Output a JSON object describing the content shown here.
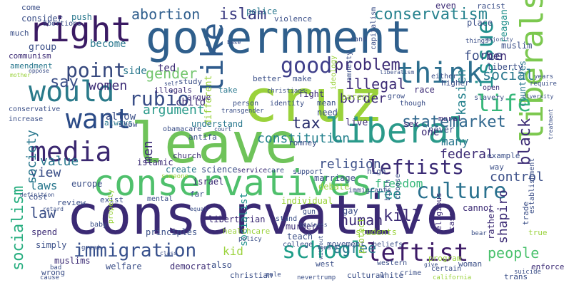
{
  "words": [
    {
      "text": "conservative",
      "color": "#3b2a74"
    },
    {
      "text": "leave",
      "color": "#6fc35a"
    },
    {
      "text": "government",
      "color": "#2f5f8c"
    },
    {
      "text": "cruz",
      "color": "#9ad23b"
    },
    {
      "text": "conservatives",
      "color": "#4fc06c"
    },
    {
      "text": "liberal",
      "color": "#2a9a8a"
    },
    {
      "text": "liberals",
      "color": "#7cc84f"
    },
    {
      "text": "right",
      "color": "#3a1a63"
    },
    {
      "text": "would",
      "color": "#2a7a8a"
    },
    {
      "text": "want",
      "color": "#2a4a86"
    },
    {
      "text": "media",
      "color": "#3b2870"
    },
    {
      "text": "like",
      "color": "#2f5b8c"
    },
    {
      "text": "think",
      "color": "#2c6e8e"
    },
    {
      "text": "issue",
      "color": "#21908d"
    },
    {
      "text": "good",
      "color": "#3f3f8a"
    },
    {
      "text": "point",
      "color": "#35477d"
    },
    {
      "text": "rubio",
      "color": "#3a4e87"
    },
    {
      "text": "life",
      "color": "#36b779"
    },
    {
      "text": "leftists",
      "color": "#3a2a74"
    },
    {
      "text": "culture",
      "color": "#2a718e"
    },
    {
      "text": "leftist",
      "color": "#3c1a66"
    },
    {
      "text": "school",
      "color": "#1f9e89"
    },
    {
      "text": "immigration",
      "color": "#37508c"
    },
    {
      "text": "conservatism",
      "color": "#26828e"
    },
    {
      "text": "abortion",
      "color": "#2f5e8d"
    },
    {
      "text": "islam",
      "color": "#3a3a80"
    },
    {
      "text": "socialism",
      "color": "#28ae80"
    },
    {
      "text": "statemarket",
      "color": "#31688e"
    },
    {
      "text": "black",
      "color": "#3b2a74"
    },
    {
      "text": "kasich",
      "color": "#26828e"
    },
    {
      "text": "social",
      "color": "#2a788e"
    },
    {
      "text": "say",
      "color": "#3a4e87"
    },
    {
      "text": "women",
      "color": "#3a2a74"
    },
    {
      "text": "gender",
      "color": "#74c66f"
    },
    {
      "text": "problem",
      "color": "#3b2a74"
    },
    {
      "text": "illegal",
      "color": "#3b2a74"
    },
    {
      "text": "force",
      "color": "#3a4e87"
    },
    {
      "text": "argument",
      "color": "#2a9a8a"
    },
    {
      "text": "tax",
      "color": "#2a2f6e"
    },
    {
      "text": "constitution",
      "color": "#26828e"
    },
    {
      "text": "free",
      "color": "#21918c"
    },
    {
      "text": "kill",
      "color": "#3b2a74"
    },
    {
      "text": "people",
      "color": "#4ac16d"
    },
    {
      "text": "shapiro",
      "color": "#3b2a74"
    },
    {
      "text": "religion",
      "color": "#3a4e87"
    },
    {
      "text": "value",
      "color": "#2a788e"
    },
    {
      "text": "view",
      "color": "#3a4e87"
    },
    {
      "text": "society",
      "color": "#2a788e"
    },
    {
      "text": "men",
      "color": "#3a2a74"
    },
    {
      "text": "laws",
      "color": "#2a788e"
    },
    {
      "text": "law",
      "color": "#3a4e87"
    },
    {
      "text": "human",
      "color": "#3b2a74"
    },
    {
      "text": "agree",
      "color": "#2a788e"
    },
    {
      "text": "kid",
      "color": "#9ad23b"
    },
    {
      "text": "control",
      "color": "#3a4e87"
    },
    {
      "text": "federal",
      "color": "#3b2a74"
    },
    {
      "text": "many",
      "color": "#2a788e"
    },
    {
      "text": "freedom",
      "color": "#35b779"
    },
    {
      "text": "border",
      "color": "#3b2a74"
    },
    {
      "text": "islamic",
      "color": "#3b2a74"
    },
    {
      "text": "one",
      "color": "#3b2a74"
    },
    {
      "text": "ben",
      "color": "#3b2a74"
    },
    {
      "text": "allow",
      "color": "#3a4e87"
    },
    {
      "text": "child",
      "color": "#3b2a74"
    },
    {
      "text": "ted",
      "color": "#3b2a74"
    },
    {
      "text": "side",
      "color": "#2a788e"
    },
    {
      "text": "become",
      "color": "#2a788e"
    },
    {
      "text": "group",
      "color": "#3a4e87"
    },
    {
      "text": "consider",
      "color": "#3a4e87"
    },
    {
      "text": "push",
      "color": "#2a788e"
    },
    {
      "text": "police",
      "color": "#2a788e"
    },
    {
      "text": "even",
      "color": "#3b2a74"
    },
    {
      "text": "racist",
      "color": "#3a4e87"
    },
    {
      "text": "come",
      "color": "#3a4e87"
    },
    {
      "text": "communism",
      "color": "#3b2a74"
    },
    {
      "text": "amendment",
      "color": "#2a788e"
    },
    {
      "text": "violence",
      "color": "#3a4e87"
    },
    {
      "text": "parent",
      "color": "#9ad23b"
    },
    {
      "text": "race",
      "color": "#3b2a74"
    },
    {
      "text": "moral",
      "color": "#3b2a74"
    },
    {
      "text": "never",
      "color": "#3a4e87"
    },
    {
      "text": "sex",
      "color": "#3b2a74"
    },
    {
      "text": "live",
      "color": "#3b2a74"
    },
    {
      "text": "reagan",
      "color": "#21918c"
    },
    {
      "text": "countries",
      "color": "#2a788e"
    },
    {
      "text": "muslim",
      "color": "#3a4e87"
    },
    {
      "text": "liberty",
      "color": "#3a4e87"
    },
    {
      "text": "place",
      "color": "#3a4e87"
    },
    {
      "text": "different",
      "color": "#9ad23b"
    },
    {
      "text": "argue",
      "color": "#3b2a74"
    },
    {
      "text": "illegals",
      "color": "#3b2a74"
    },
    {
      "text": "study",
      "color": "#3a4e87"
    },
    {
      "text": "better",
      "color": "#3a4e87"
    },
    {
      "text": "make",
      "color": "#3a4e87"
    },
    {
      "text": "fight",
      "color": "#3b2a74"
    },
    {
      "text": "take",
      "color": "#2a788e"
    },
    {
      "text": "need",
      "color": "#3a4e87"
    },
    {
      "text": "mean",
      "color": "#3a4e87"
    },
    {
      "text": "understand",
      "color": "#2a788e"
    },
    {
      "text": "obamacare",
      "color": "#3a4e87"
    },
    {
      "text": "always",
      "color": "#2a788e"
    },
    {
      "text": "show",
      "color": "#3a4e87"
    },
    {
      "text": "antifa",
      "color": "#3a4e87"
    },
    {
      "text": "church",
      "color": "#3b2a74"
    },
    {
      "text": "marriage",
      "color": "#3a4e87"
    },
    {
      "text": "debate",
      "color": "#9ad23b"
    },
    {
      "text": "romney",
      "color": "#3a4e87"
    },
    {
      "text": "example",
      "color": "#3a4e87"
    },
    {
      "text": "way",
      "color": "#3a4e87"
    },
    {
      "text": "create",
      "color": "#2a788e"
    },
    {
      "text": "science",
      "color": "#3a4e87"
    },
    {
      "text": "service",
      "color": "#3b2a74"
    },
    {
      "text": "care",
      "color": "#3a4e87"
    },
    {
      "text": "support",
      "color": "#3a4e87"
    },
    {
      "text": "high",
      "color": "#3a4e87"
    },
    {
      "text": "cannot",
      "color": "#3b2a74"
    },
    {
      "text": "trade",
      "color": "#3a4e87"
    },
    {
      "text": "cost",
      "color": "#3a4e87"
    },
    {
      "text": "israel",
      "color": "#3b2a74"
    },
    {
      "text": "far",
      "color": "#3a4e87"
    },
    {
      "text": "individual",
      "color": "#9ad23b"
    },
    {
      "text": "exist",
      "color": "#3a4e87"
    },
    {
      "text": "review",
      "color": "#3a4e87"
    },
    {
      "text": "spend",
      "color": "#3b2a74"
    },
    {
      "text": "simply",
      "color": "#3a4e87"
    },
    {
      "text": "principles",
      "color": "#3a4e87"
    },
    {
      "text": "libertarian",
      "color": "#3b2a74"
    },
    {
      "text": "socialist",
      "color": "#21918c"
    },
    {
      "text": "murder",
      "color": "#3b2a74"
    },
    {
      "text": "teach",
      "color": "#3a4e87"
    },
    {
      "text": "gay",
      "color": "#3a4e87"
    },
    {
      "text": "students",
      "color": "#9ad23b"
    },
    {
      "text": "rather",
      "color": "#3b2a74"
    },
    {
      "text": "true",
      "color": "#9ad23b"
    },
    {
      "text": "woman",
      "color": "#3a4e87"
    },
    {
      "text": "program",
      "color": "#9ad23b"
    },
    {
      "text": "muslims",
      "color": "#3b2a74"
    },
    {
      "text": "welfare",
      "color": "#3a4e87"
    },
    {
      "text": "democrat",
      "color": "#3b2a74"
    },
    {
      "text": "also",
      "color": "#3a4e87"
    },
    {
      "text": "enforce",
      "color": "#3b2a74"
    },
    {
      "text": "wrong",
      "color": "#3a4e87"
    },
    {
      "text": "christian",
      "color": "#3a4e87"
    },
    {
      "text": "cultural",
      "color": "#3a4e87"
    },
    {
      "text": "white",
      "color": "#3a4e87"
    },
    {
      "text": "trans",
      "color": "#3a4e87"
    },
    {
      "text": "west",
      "color": "#3a4e87"
    },
    {
      "text": "europe",
      "color": "#3a4e87"
    },
    {
      "text": "religious",
      "color": "#3b2a74"
    },
    {
      "text": "case",
      "color": "#3b2a74"
    },
    {
      "text": "movement",
      "color": "#3a4e87"
    },
    {
      "text": "college",
      "color": "#3a4e87"
    },
    {
      "text": "healthcare",
      "color": "#9ad23b"
    },
    {
      "text": "stand",
      "color": "#3a4e87"
    },
    {
      "text": "beliefs",
      "color": "#3a4e87"
    },
    {
      "text": "protect",
      "color": "#9ad23b"
    },
    {
      "text": "crime",
      "color": "#3a4e87"
    },
    {
      "text": "certain",
      "color": "#3a4e87"
    },
    {
      "text": "western",
      "color": "#3a4e87"
    },
    {
      "text": "much",
      "color": "#3a4e87"
    },
    {
      "text": "abortions",
      "color": "#3a4e87"
    },
    {
      "text": "conservative",
      "color": "#3a4e87"
    },
    {
      "text": "increase",
      "color": "#3a4e87"
    },
    {
      "text": "ideology",
      "color": "#9ad23b"
    },
    {
      "text": "identity",
      "color": "#3a4e87"
    },
    {
      "text": "person",
      "color": "#3a4e87"
    },
    {
      "text": "christians",
      "color": "#3a4e87"
    },
    {
      "text": "amnesty",
      "color": "#3a4e87"
    },
    {
      "text": "transgender",
      "color": "#3a4e87"
    },
    {
      "text": "capitalism",
      "color": "#3a4e87"
    },
    {
      "text": "grow",
      "color": "#3a4e87"
    },
    {
      "text": "though",
      "color": "#3a4e87"
    },
    {
      "text": "choose",
      "color": "#3a4e87"
    },
    {
      "text": "immigrants",
      "color": "#3a4e87"
    },
    {
      "text": "birth",
      "color": "#3a4e87"
    },
    {
      "text": "gun",
      "color": "#3a4e87"
    },
    {
      "text": "open",
      "color": "#3b2a74"
    },
    {
      "text": "higher",
      "color": "#3a4e87"
    },
    {
      "text": "slavery",
      "color": "#3a4e87"
    },
    {
      "text": "rand",
      "color": "#3a4e87"
    },
    {
      "text": "either",
      "color": "#3a4e87"
    },
    {
      "text": "things",
      "color": "#3a4e87"
    },
    {
      "text": "majority",
      "color": "#3a4e87"
    },
    {
      "text": "years",
      "color": "#3a4e87"
    },
    {
      "text": "require",
      "color": "#3a4e87"
    },
    {
      "text": "diversity",
      "color": "#3a4e87"
    },
    {
      "text": "establishment",
      "color": "#3a4e87"
    },
    {
      "text": "treatment",
      "color": "#3a4e87"
    },
    {
      "text": "baby",
      "color": "#3a4e87"
    },
    {
      "text": "class",
      "color": "#3a4e87"
    },
    {
      "text": "policy",
      "color": "#3a4e87"
    },
    {
      "text": "property",
      "color": "#9ad23b"
    },
    {
      "text": "mental",
      "color": "#3a4e87"
    },
    {
      "text": "equal",
      "color": "#3a4e87"
    },
    {
      "text": "retard",
      "color": "#3a4e87"
    },
    {
      "text": "definition",
      "color": "#3a4e87"
    },
    {
      "text": "someone",
      "color": "#9ad23b"
    },
    {
      "text": "cause",
      "color": "#3a4e87"
    },
    {
      "text": "bad",
      "color": "#3a4e87"
    },
    {
      "text": "suicide",
      "color": "#3a4e87"
    },
    {
      "text": "give",
      "color": "#3a4e87"
    },
    {
      "text": "california",
      "color": "#9ad23b"
    },
    {
      "text": "male",
      "color": "#3a4e87"
    },
    {
      "text": "nevertrump",
      "color": "#3a4e87"
    },
    {
      "text": "female",
      "color": "#3a4e87"
    },
    {
      "text": "without",
      "color": "#3a4e87"
    },
    {
      "text": "business",
      "color": "#3a4e87"
    },
    {
      "text": "bear",
      "color": "#3a4e87"
    },
    {
      "text": "great",
      "color": "#3a4e87"
    },
    {
      "text": "oppose",
      "color": "#3a4e87"
    },
    {
      "text": "mother",
      "color": "#9ad23b"
    },
    {
      "text": "self",
      "color": "#3a4e87"
    },
    {
      "text": "base",
      "color": "#3a4e87"
    },
    {
      "text": "liberalism",
      "color": "#3a4e87"
    },
    {
      "text": "court",
      "color": "#3a4e87"
    },
    {
      "text": "anyone",
      "color": "#3a4e87"
    }
  ]
}
